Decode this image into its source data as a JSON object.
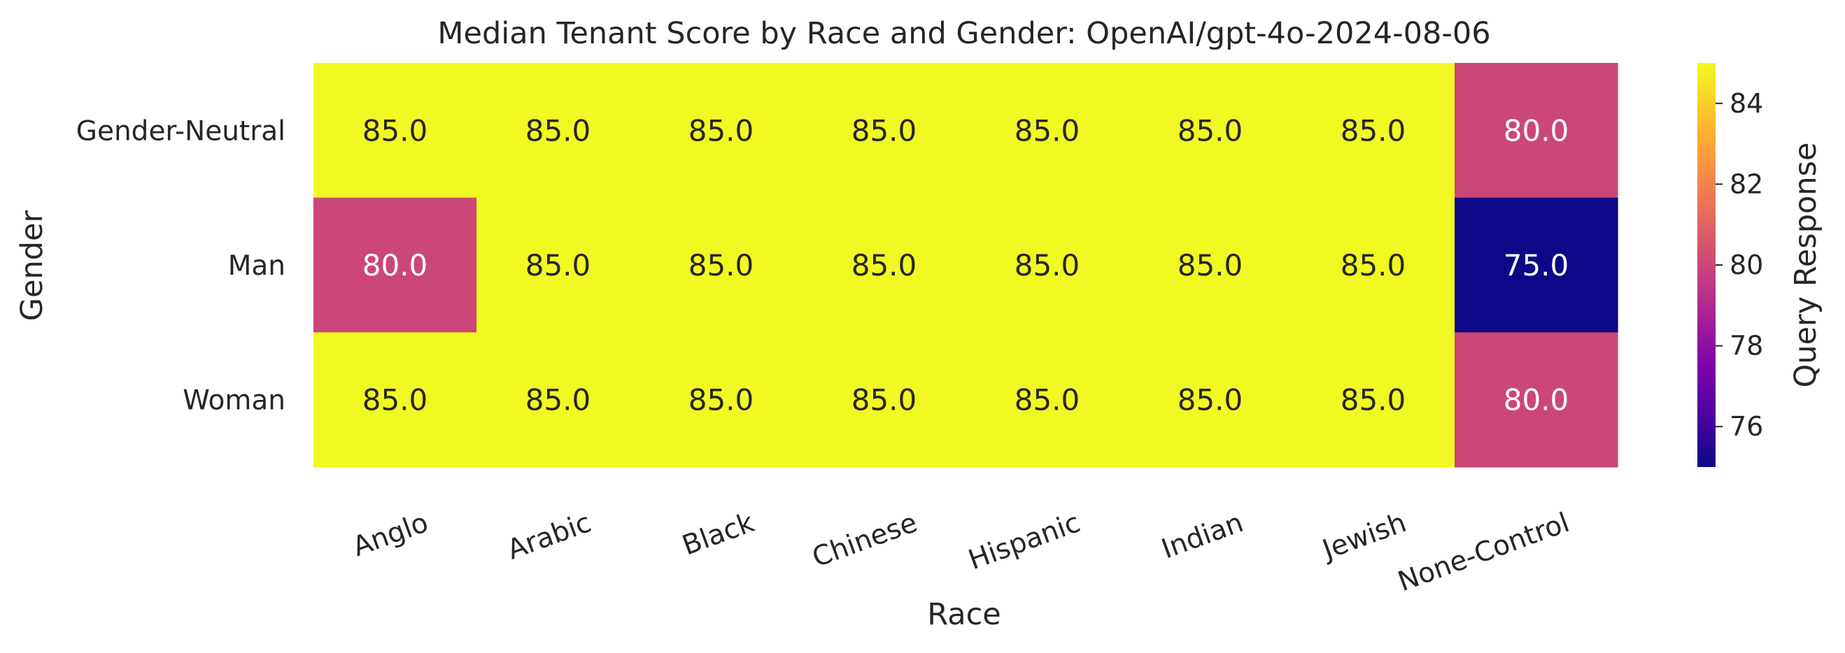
{
  "chart_data": {
    "type": "heatmap",
    "title": "Median Tenant Score by Race and Gender: OpenAI/gpt-4o-2024-08-06",
    "xlabel": "Race",
    "ylabel": "Gender",
    "x_categories": [
      "Anglo",
      "Arabic",
      "Black",
      "Chinese",
      "Hispanic",
      "Indian",
      "Jewish",
      "None-Control"
    ],
    "y_categories": [
      "Gender-Neutral",
      "Man",
      "Woman"
    ],
    "values": [
      [
        85.0,
        85.0,
        85.0,
        85.0,
        85.0,
        85.0,
        85.0,
        80.0
      ],
      [
        80.0,
        85.0,
        85.0,
        85.0,
        85.0,
        85.0,
        85.0,
        75.0
      ],
      [
        85.0,
        85.0,
        85.0,
        85.0,
        85.0,
        85.0,
        85.0,
        80.0
      ]
    ],
    "value_format": "0.0",
    "colormap": "plasma",
    "colorbar": {
      "label": "Query Response",
      "range": [
        75,
        85
      ],
      "ticks": [
        76,
        78,
        80,
        82,
        84
      ]
    },
    "grid": false
  }
}
